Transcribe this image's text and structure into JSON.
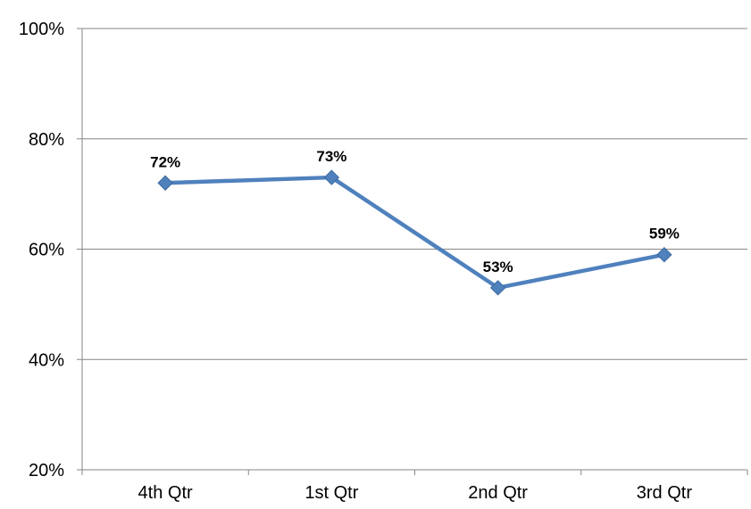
{
  "chart_data": {
    "type": "line",
    "title": "",
    "xlabel": "",
    "ylabel": "",
    "categories": [
      "4th Qtr",
      "1st Qtr",
      "2nd Qtr",
      "3rd Qtr"
    ],
    "series": [
      {
        "values": [
          72,
          73,
          53,
          59
        ],
        "data_labels": [
          "72%",
          "73%",
          "53%",
          "59%"
        ],
        "color": "#4F81BD",
        "marker": "diamond"
      }
    ],
    "ylim": [
      20,
      100
    ],
    "yticks": [
      20,
      40,
      60,
      80,
      100
    ],
    "ytick_labels": [
      "20%",
      "40%",
      "60%",
      "80%",
      "100%"
    ],
    "grid": "horizontal major gridlines",
    "legend": "none"
  }
}
